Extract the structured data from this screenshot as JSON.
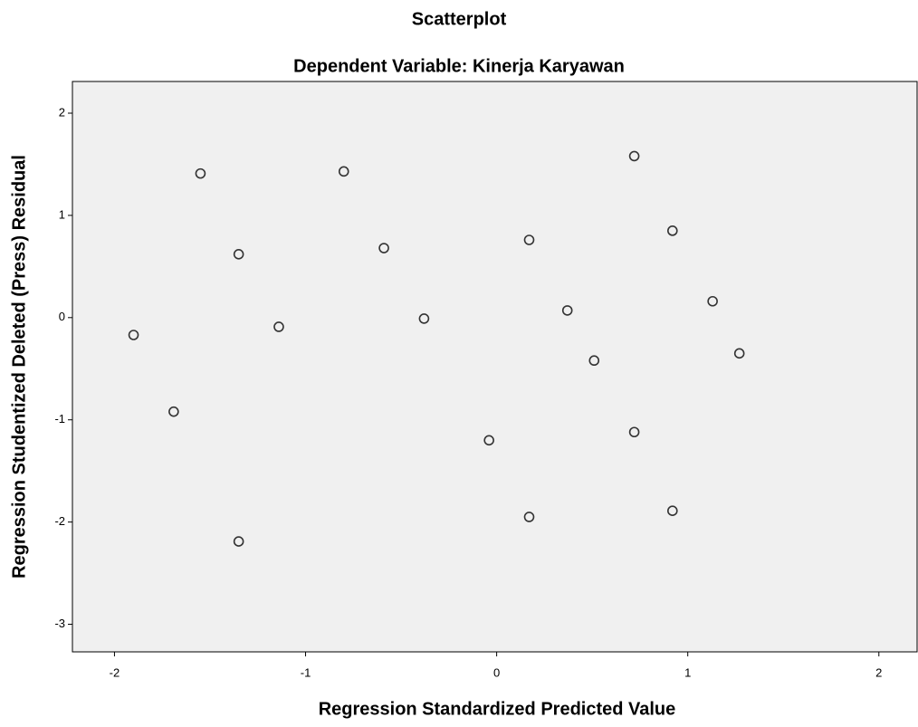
{
  "chart_data": {
    "type": "scatter",
    "title": "Scatterplot",
    "subtitle": "Dependent Variable: Kinerja Karyawan",
    "x_label": "Regression Standardized Predicted Value",
    "y_label": "Regression Studentized Deleted (Press) Residual",
    "x": [
      -1.9,
      -1.55,
      -1.35,
      -1.69,
      -1.35,
      -1.14,
      -0.8,
      -0.59,
      -0.38,
      -0.04,
      0.17,
      0.17,
      0.37,
      0.51,
      0.72,
      0.72,
      0.92,
      0.92,
      1.13,
      1.27
    ],
    "values": [
      -0.17,
      1.41,
      0.62,
      -0.92,
      -2.19,
      -0.09,
      1.43,
      0.68,
      -0.01,
      -1.2,
      0.76,
      -1.95,
      0.07,
      -0.42,
      1.58,
      -1.12,
      0.85,
      -1.89,
      0.16,
      -0.35
    ],
    "color": "#333333",
    "xlim": [
      -2.22,
      2.2
    ],
    "xticks": [
      -2,
      -1,
      0,
      1,
      2
    ],
    "ylim": [
      -3.27,
      2.31
    ],
    "yticks": [
      -3,
      -2,
      -1,
      0,
      1,
      2
    ],
    "grid": false
  }
}
